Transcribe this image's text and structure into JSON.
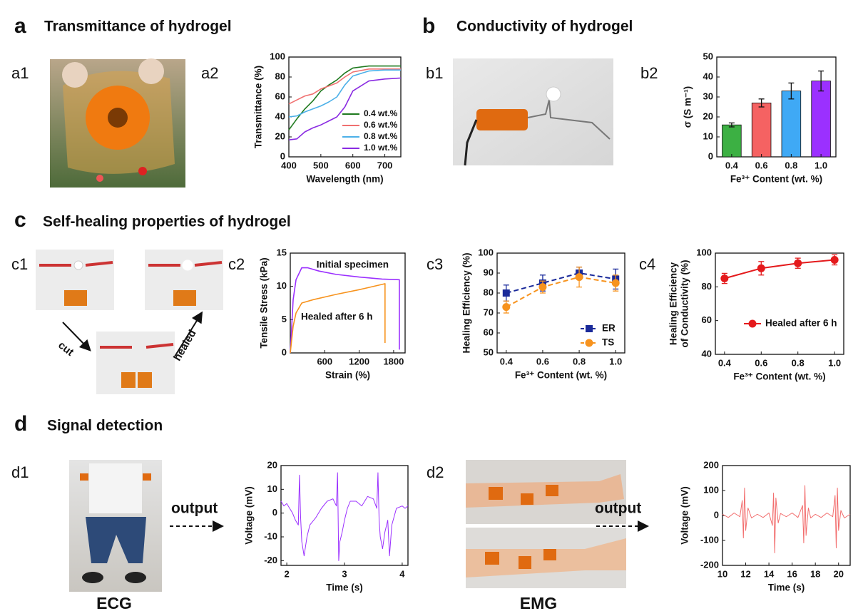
{
  "headings": [
    {
      "letter": "a",
      "title": "Transmittance of hydrogel"
    },
    {
      "letter": "b",
      "title": "Conductivity of hydrogel"
    },
    {
      "letter": "c",
      "title": "Self-healing properties of hydrogel"
    },
    {
      "letter": "d",
      "title": "Signal detection"
    }
  ],
  "sublabels": [
    "a1",
    "a2",
    "b1",
    "b2",
    "c1",
    "c2",
    "c3",
    "c4",
    "d1",
    "d2"
  ],
  "photo_labels": [
    "cut",
    "healed",
    "output",
    "output",
    "ECG",
    "EMG"
  ],
  "chart_data": [
    {
      "type": "line",
      "xlabel": "Wavelength (nm)",
      "ylabel": "Transmittance (%)",
      "x": [
        400,
        425,
        450,
        475,
        500,
        525,
        550,
        575,
        600,
        650,
        700,
        750
      ],
      "xlim": [
        400,
        750
      ],
      "xticks": [
        400,
        500,
        600,
        700
      ],
      "ylim": [
        0,
        100
      ],
      "yticks": [
        0,
        20,
        40,
        60,
        80,
        100
      ],
      "legend": "lower right",
      "series": [
        {
          "name": "0.4 wt.%",
          "color": "#1f7a1f",
          "values": [
            27,
            38,
            48,
            56,
            66,
            72,
            77,
            84,
            89,
            91,
            91,
            91
          ]
        },
        {
          "name": "0.6 wt.%",
          "color": "#f07070",
          "values": [
            53,
            57,
            61,
            63,
            68,
            71,
            74,
            80,
            85,
            88,
            88,
            88
          ]
        },
        {
          "name": "0.8 wt.%",
          "color": "#4cb0e8",
          "values": [
            40,
            41,
            45,
            48,
            51,
            55,
            60,
            72,
            81,
            86,
            87,
            87
          ]
        },
        {
          "name": "1.0 wt.%",
          "color": "#8a2be2",
          "values": [
            17,
            18,
            25,
            29,
            32,
            36,
            40,
            50,
            66,
            76,
            78,
            79
          ]
        }
      ]
    },
    {
      "type": "bar",
      "xlabel": "Fe³⁺ Content (wt. %)",
      "ylabel": "σ (S m⁻¹)",
      "categories": [
        "0.4",
        "0.6",
        "0.8",
        "1.0"
      ],
      "values": [
        16,
        27,
        33,
        38
      ],
      "errors": [
        1,
        2,
        4,
        5
      ],
      "colors": [
        "#3cb043",
        "#f56262",
        "#3fa9f5",
        "#9b30ff"
      ],
      "ylim": [
        0,
        50
      ],
      "yticks": [
        0,
        10,
        20,
        30,
        40,
        50
      ]
    },
    {
      "type": "line",
      "xlabel": "Strain (%)",
      "ylabel": "Tensile Stress (kPa)",
      "xlim": [
        0,
        2000
      ],
      "xticks": [
        600,
        1200,
        1800
      ],
      "ylim": [
        0,
        15
      ],
      "yticks": [
        0,
        5,
        10,
        15
      ],
      "legend": "inline",
      "series": [
        {
          "name": "Initial specimen",
          "color": "#9b30ff",
          "x": [
            0,
            50,
            100,
            200,
            300,
            500,
            800,
            1200,
            1600,
            1900,
            1900
          ],
          "values": [
            0,
            8,
            11,
            12.8,
            12.8,
            12.3,
            11.8,
            11.4,
            11.1,
            11,
            0.5
          ]
        },
        {
          "name": "Healed after 6 h",
          "color": "#f7931e",
          "x": [
            0,
            50,
            100,
            200,
            400,
            800,
            1200,
            1600,
            1650,
            1650
          ],
          "values": [
            0,
            4,
            6,
            7.5,
            8,
            8.8,
            9.5,
            10.3,
            10.4,
            1.5
          ]
        }
      ]
    },
    {
      "type": "line",
      "xlabel": "Fe³⁺ Content (wt. %)",
      "ylabel": "Healing Efficiency (%)",
      "x": [
        0.4,
        0.6,
        0.8,
        1.0
      ],
      "xlim": [
        0.35,
        1.05
      ],
      "xticks": [
        0.4,
        0.6,
        0.8,
        {
          "value": 1,
          "label": "1.0"
        }
      ],
      "ylim": [
        50,
        100
      ],
      "yticks": [
        50,
        60,
        70,
        80,
        90,
        100
      ],
      "legend": "lower right",
      "series": [
        {
          "name": "ER",
          "color": "#1a2a9a",
          "marker": "square",
          "dashed": true,
          "values": [
            80,
            85,
            90,
            87
          ],
          "errors": [
            4,
            4,
            3,
            5
          ]
        },
        {
          "name": "TS",
          "color": "#f7931e",
          "marker": "circle",
          "dashed": true,
          "values": [
            73,
            83,
            88,
            85
          ],
          "errors": [
            3,
            3,
            5,
            4
          ]
        }
      ]
    },
    {
      "type": "line",
      "xlabel": "Fe³⁺ Content (wt. %)",
      "ylabel": [
        "Healing Efficiency",
        "of Conductivity (%)"
      ],
      "x": [
        0.4,
        0.6,
        0.8,
        1.0
      ],
      "xlim": [
        0.35,
        1.05
      ],
      "xticks": [
        0.4,
        0.6,
        0.8,
        {
          "value": 1,
          "label": "1.0"
        }
      ],
      "ylim": [
        40,
        100
      ],
      "yticks": [
        40,
        60,
        80,
        100
      ],
      "legend": "center right",
      "series": [
        {
          "name": "Healed after 6 h",
          "color": "#e41a1c",
          "marker": "circle",
          "values": [
            85,
            91,
            94,
            96
          ],
          "errors": [
            3,
            4,
            3,
            3
          ]
        }
      ]
    },
    {
      "type": "line",
      "xlabel": "Time (s)",
      "ylabel": "Voltage (mV)",
      "xlim": [
        1.9,
        4.1
      ],
      "xticks": [
        2,
        3,
        4
      ],
      "ylim": [
        -22,
        20
      ],
      "yticks": [
        -20,
        -10,
        0,
        10,
        20
      ],
      "color": "#9b30ff",
      "x": [
        1.9,
        1.95,
        2.0,
        2.05,
        2.1,
        2.15,
        2.2,
        2.22,
        2.24,
        2.26,
        2.3,
        2.35,
        2.4,
        2.5,
        2.6,
        2.7,
        2.8,
        2.86,
        2.88,
        2.9,
        2.92,
        2.96,
        3.0,
        3.05,
        3.1,
        3.2,
        3.3,
        3.4,
        3.5,
        3.56,
        3.58,
        3.6,
        3.62,
        3.66,
        3.7,
        3.75,
        3.78,
        3.82,
        3.9,
        4.0,
        4.05,
        4.1
      ],
      "values": [
        5,
        3,
        4,
        2,
        0,
        -3,
        -5,
        16,
        -2,
        -12,
        -18,
        -10,
        -5,
        -2,
        2,
        5,
        6,
        3,
        17,
        -20,
        -12,
        -8,
        -3,
        2,
        5,
        5,
        3,
        7,
        6,
        2,
        17,
        -3,
        -10,
        -15,
        -8,
        -3,
        -18,
        -5,
        2,
        3,
        2,
        3
      ]
    },
    {
      "type": "line",
      "xlabel": "Time (s)",
      "ylabel": "Voltage (mV)",
      "xlim": [
        10,
        21
      ],
      "xticks": [
        10,
        12,
        14,
        16,
        18,
        20
      ],
      "ylim": [
        -200,
        200
      ],
      "yticks": [
        -200,
        -100,
        0,
        100,
        200
      ],
      "color": "#f26d6d",
      "x": [
        10,
        10.5,
        11,
        11.5,
        11.7,
        11.8,
        11.9,
        12.0,
        12.2,
        12.5,
        13,
        13.5,
        14,
        14.3,
        14.4,
        14.5,
        14.6,
        14.8,
        15,
        15.5,
        16,
        16.5,
        16.9,
        17.0,
        17.1,
        17.2,
        17.4,
        17.6,
        18,
        18.5,
        19,
        19.5,
        19.7,
        19.8,
        19.9,
        20.0,
        20.2,
        20.5,
        21
      ],
      "values": [
        5,
        -8,
        10,
        -5,
        60,
        -90,
        110,
        -60,
        30,
        -10,
        5,
        -8,
        10,
        -40,
        90,
        -150,
        70,
        -30,
        8,
        -5,
        10,
        -8,
        40,
        -110,
        120,
        -80,
        30,
        -10,
        5,
        -8,
        10,
        -5,
        80,
        -130,
        110,
        -60,
        20,
        -10,
        5
      ]
    }
  ]
}
